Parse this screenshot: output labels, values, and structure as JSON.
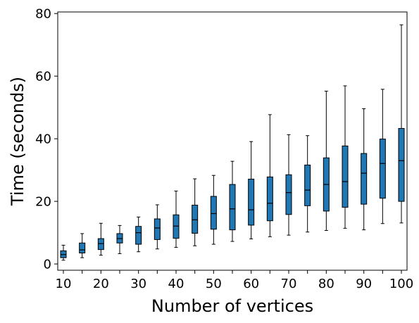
{
  "chart_data": {
    "type": "box",
    "xlabel": "Number of vertices",
    "ylabel": "Time (seconds)",
    "xlim": [
      8.5,
      101.5
    ],
    "ylim": [
      -2,
      80.5
    ],
    "x_ticks_labeled": [
      10,
      20,
      30,
      40,
      50,
      60,
      70,
      80,
      90,
      100
    ],
    "x_ticks_minor": [
      15,
      25,
      35,
      45,
      55,
      65,
      75,
      85,
      95
    ],
    "y_ticks": [
      0,
      20,
      40,
      60,
      80
    ],
    "box_color": "#1f77b4",
    "boxes": [
      {
        "x": 10,
        "whislo": 1.2,
        "q1": 2.0,
        "med": 3.0,
        "q3": 4.2,
        "whishi": 6.0
      },
      {
        "x": 15,
        "whislo": 2.0,
        "q1": 3.5,
        "med": 4.5,
        "q3": 6.7,
        "whishi": 9.7
      },
      {
        "x": 20,
        "whislo": 2.8,
        "q1": 4.6,
        "med": 6.5,
        "q3": 8.1,
        "whishi": 13.0
      },
      {
        "x": 25,
        "whislo": 3.3,
        "q1": 6.7,
        "med": 8.1,
        "q3": 9.7,
        "whishi": 12.3
      },
      {
        "x": 30,
        "whislo": 3.9,
        "q1": 6.3,
        "med": 10.0,
        "q3": 12.0,
        "whishi": 15.0
      },
      {
        "x": 35,
        "whislo": 4.8,
        "q1": 7.8,
        "med": 11.5,
        "q3": 14.4,
        "whishi": 18.9
      },
      {
        "x": 40,
        "whislo": 5.3,
        "q1": 8.2,
        "med": 12.1,
        "q3": 15.7,
        "whishi": 23.3
      },
      {
        "x": 45,
        "whislo": 5.8,
        "q1": 9.8,
        "med": 14.1,
        "q3": 18.8,
        "whishi": 27.2
      },
      {
        "x": 50,
        "whislo": 6.3,
        "q1": 11.1,
        "med": 16.1,
        "q3": 21.6,
        "whishi": 28.3
      },
      {
        "x": 55,
        "whislo": 7.2,
        "q1": 10.9,
        "med": 17.6,
        "q3": 25.4,
        "whishi": 32.8
      },
      {
        "x": 60,
        "whislo": 8.0,
        "q1": 12.4,
        "med": 17.3,
        "q3": 27.1,
        "whishi": 39.1
      },
      {
        "x": 65,
        "whislo": 8.7,
        "q1": 13.8,
        "med": 19.4,
        "q3": 27.8,
        "whishi": 47.7
      },
      {
        "x": 70,
        "whislo": 9.2,
        "q1": 15.8,
        "med": 22.8,
        "q3": 28.5,
        "whishi": 41.3
      },
      {
        "x": 75,
        "whislo": 10.2,
        "q1": 18.6,
        "med": 23.6,
        "q3": 31.6,
        "whishi": 41.0
      },
      {
        "x": 80,
        "whislo": 10.7,
        "q1": 16.9,
        "med": 25.4,
        "q3": 33.9,
        "whishi": 55.2
      },
      {
        "x": 85,
        "whislo": 11.4,
        "q1": 18.1,
        "med": 26.3,
        "q3": 37.7,
        "whishi": 56.9
      },
      {
        "x": 90,
        "whislo": 10.9,
        "q1": 19.1,
        "med": 29.0,
        "q3": 35.3,
        "whishi": 49.6
      },
      {
        "x": 95,
        "whislo": 12.9,
        "q1": 21.0,
        "med": 32.1,
        "q3": 39.9,
        "whishi": 55.8
      },
      {
        "x": 100,
        "whislo": 13.1,
        "q1": 20.0,
        "med": 33.0,
        "q3": 43.3,
        "whishi": 76.4
      }
    ]
  }
}
